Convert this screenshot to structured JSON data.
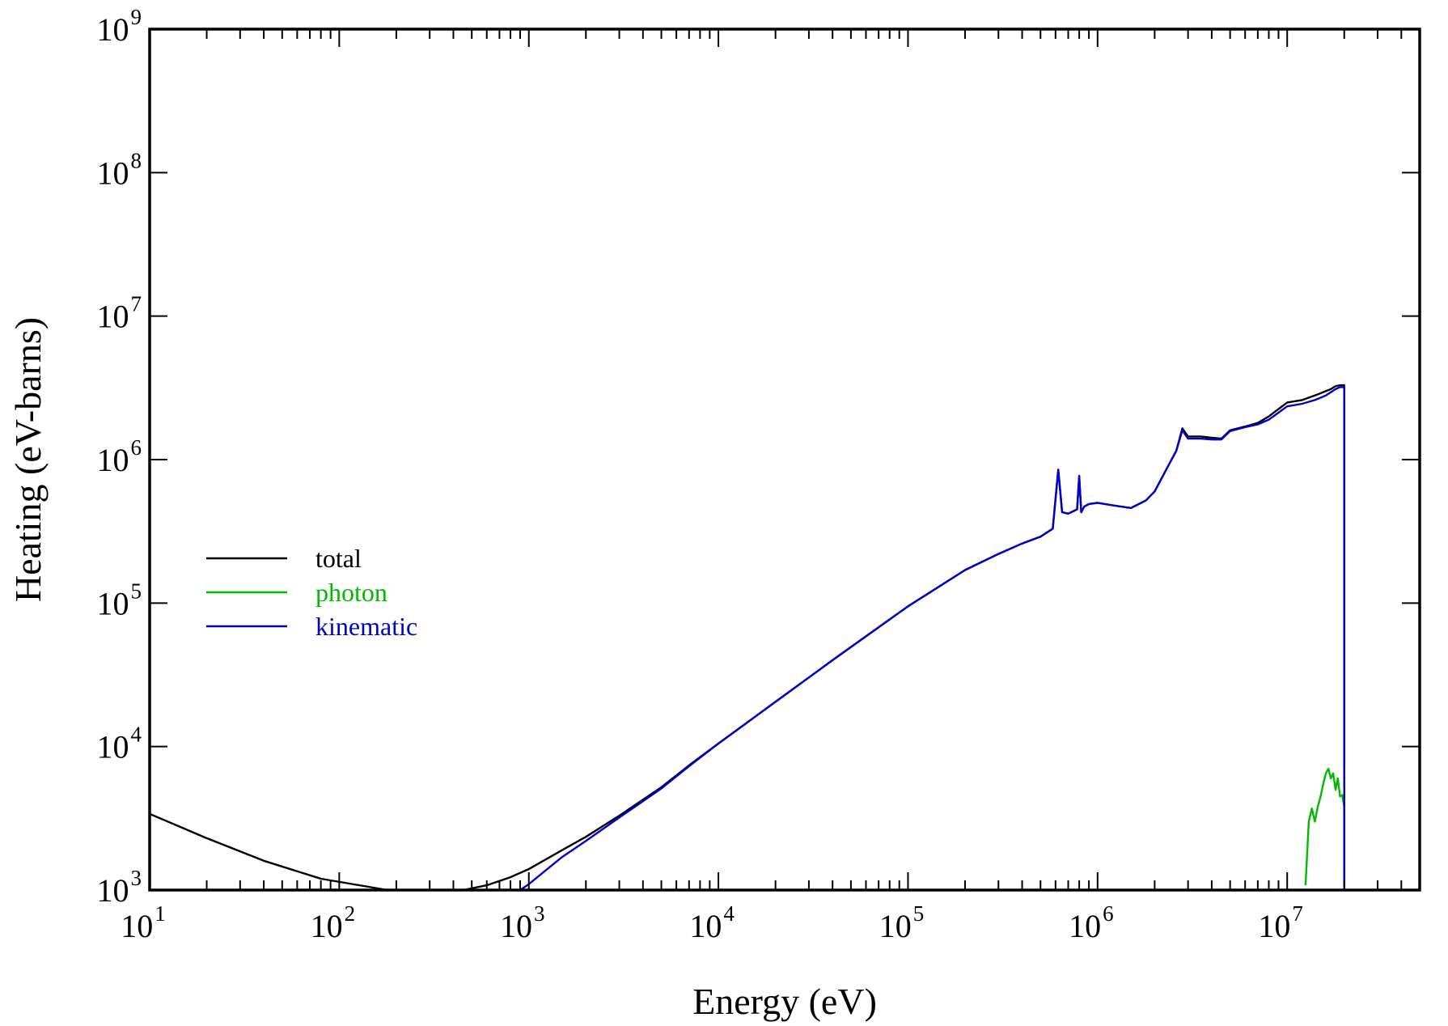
{
  "chart_data": {
    "type": "line",
    "title": "",
    "xlabel": "Energy (eV)",
    "ylabel": "Heating (eV-barns)",
    "x_scale": "log",
    "y_scale": "log",
    "xlim": [
      10,
      50000000
    ],
    "ylim": [
      1000,
      1000000000
    ],
    "grid": false,
    "legend_position": "left-middle",
    "x_tick_labels": [
      {
        "value": 10,
        "base": "10",
        "exp": "1"
      },
      {
        "value": 100,
        "base": "10",
        "exp": "2"
      },
      {
        "value": 1000,
        "base": "10",
        "exp": "3"
      },
      {
        "value": 10000,
        "base": "10",
        "exp": "4"
      },
      {
        "value": 100000,
        "base": "10",
        "exp": "5"
      },
      {
        "value": 1000000,
        "base": "10",
        "exp": "6"
      },
      {
        "value": 10000000,
        "base": "10",
        "exp": "7"
      }
    ],
    "y_tick_labels": [
      {
        "value": 1000,
        "base": "10",
        "exp": "3"
      },
      {
        "value": 10000,
        "base": "10",
        "exp": "4"
      },
      {
        "value": 100000,
        "base": "10",
        "exp": "5"
      },
      {
        "value": 1000000,
        "base": "10",
        "exp": "6"
      },
      {
        "value": 10000000,
        "base": "10",
        "exp": "7"
      },
      {
        "value": 100000000,
        "base": "10",
        "exp": "8"
      },
      {
        "value": 1000000000,
        "base": "10",
        "exp": "9"
      }
    ],
    "series": [
      {
        "name": "total",
        "color": "#000000",
        "x": [
          10,
          20,
          40,
          80,
          180,
          300,
          450,
          600,
          800,
          1000,
          1500,
          2000,
          3000,
          5000,
          7000,
          10000,
          20000,
          40000,
          100000,
          200000,
          300000,
          400000,
          500000,
          580000,
          620000,
          650000,
          700000,
          780000,
          800000,
          820000,
          850000,
          900000,
          1000000,
          1200000,
          1500000,
          1800000,
          2000000,
          2300000,
          2600000,
          2800000,
          3000000,
          3500000,
          4000000,
          4500000,
          5000000,
          6000000,
          7000000,
          8000000,
          10000000,
          12000000,
          14000000,
          15000000,
          16000000,
          17000000,
          18000000,
          19000000,
          20000000,
          20000000
        ],
        "y": [
          3400,
          2300,
          1600,
          1200,
          1000,
          1000,
          1000,
          1080,
          1230,
          1400,
          1900,
          2350,
          3300,
          5200,
          7400,
          10500,
          20500,
          40000,
          95000,
          170000,
          220000,
          260000,
          290000,
          330000,
          850000,
          430000,
          420000,
          450000,
          770000,
          430000,
          470000,
          490000,
          500000,
          480000,
          460000,
          520000,
          600000,
          850000,
          1150000,
          1650000,
          1450000,
          1450000,
          1420000,
          1400000,
          1600000,
          1700000,
          1800000,
          2000000,
          2500000,
          2600000,
          2800000,
          2900000,
          3000000,
          3100000,
          3250000,
          3300000,
          3300000,
          1000
        ]
      },
      {
        "name": "photon",
        "color": "#00bb00",
        "x": [
          12500000,
          13000000,
          13500000,
          14000000,
          14500000,
          15000000,
          15500000,
          16000000,
          16500000,
          17000000,
          17500000,
          18000000,
          18500000,
          19000000,
          19500000,
          20000000
        ],
        "y": [
          1080,
          3000,
          3700,
          3000,
          3800,
          4500,
          5500,
          6500,
          7000,
          6000,
          6500,
          5000,
          6000,
          4500,
          4600,
          3800
        ]
      },
      {
        "name": "kinematic",
        "color": "#0000cc",
        "x": [
          900,
          1000,
          1500,
          2000,
          3000,
          5000,
          7000,
          10000,
          20000,
          40000,
          100000,
          200000,
          300000,
          400000,
          500000,
          580000,
          620000,
          650000,
          700000,
          780000,
          800000,
          820000,
          850000,
          900000,
          1000000,
          1200000,
          1500000,
          1800000,
          2000000,
          2300000,
          2600000,
          2800000,
          3000000,
          3500000,
          4000000,
          4500000,
          5000000,
          6000000,
          7000000,
          8000000,
          10000000,
          12000000,
          14000000,
          15000000,
          16000000,
          17000000,
          18000000,
          19000000,
          20000000,
          20000000
        ],
        "y": [
          1000,
          1100,
          1700,
          2200,
          3200,
          5100,
          7300,
          10500,
          20500,
          40000,
          95000,
          170000,
          220000,
          260000,
          290000,
          330000,
          850000,
          430000,
          420000,
          450000,
          770000,
          430000,
          470000,
          490000,
          500000,
          480000,
          460000,
          520000,
          600000,
          850000,
          1150000,
          1600000,
          1400000,
          1400000,
          1380000,
          1380000,
          1580000,
          1680000,
          1760000,
          1900000,
          2350000,
          2450000,
          2600000,
          2700000,
          2800000,
          2950000,
          3100000,
          3200000,
          3200000,
          1000
        ]
      }
    ]
  }
}
